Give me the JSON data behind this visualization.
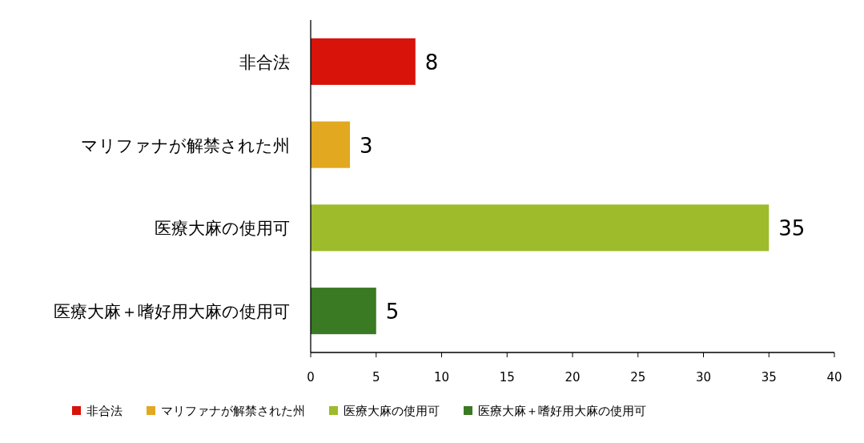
{
  "chart_data": {
    "type": "bar",
    "orientation": "horizontal",
    "stacked": true,
    "categories": [
      "非合法",
      "マリファナが解禁された州",
      "医療大麻の使用可",
      "医療大麻＋嗜好用大麻の使用可"
    ],
    "series": [
      {
        "name": "非合法",
        "color": "#d7130a",
        "values": [
          8,
          null,
          null,
          null
        ]
      },
      {
        "name": "マリファナが解禁された州",
        "color": "#e2a820",
        "values": [
          null,
          3,
          null,
          null
        ]
      },
      {
        "name": "医療大麻の使用可",
        "color": "#9dbb2a",
        "values": [
          null,
          null,
          35,
          null
        ]
      },
      {
        "name": "医療大麻＋嗜好用大麻の使用可",
        "color": "#3a7a22",
        "values": [
          null,
          null,
          null,
          5
        ]
      }
    ],
    "data_labels": true,
    "xlim": [
      0,
      40
    ],
    "xticks": [
      0,
      5,
      10,
      15,
      20,
      25,
      30,
      35,
      40
    ],
    "grid": false,
    "legend": "bottom"
  }
}
